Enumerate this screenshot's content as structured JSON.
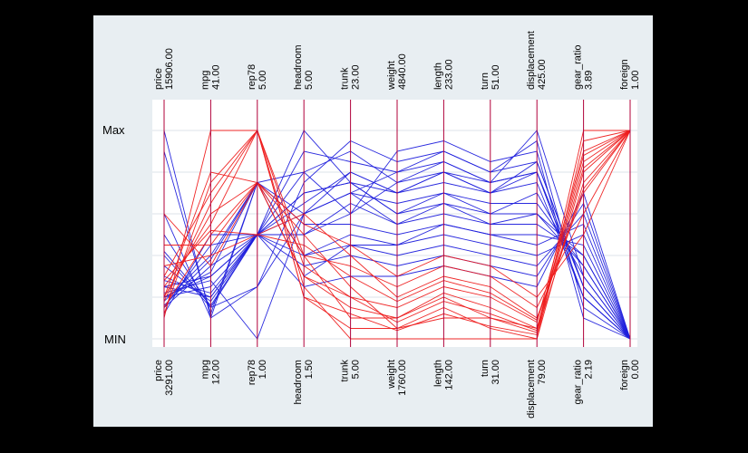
{
  "chart_data": {
    "type": "line",
    "subtype": "parallel-coordinates",
    "side_labels": {
      "max": "Max",
      "min": "MIN"
    },
    "axes": [
      {
        "name": "price",
        "max": "15906.00",
        "min": "3291.00"
      },
      {
        "name": "mpg",
        "max": "41.00",
        "min": "12.00"
      },
      {
        "name": "rep78",
        "max": "5.00",
        "min": "1.00"
      },
      {
        "name": "headroom",
        "max": "5.00",
        "min": "1.50"
      },
      {
        "name": "trunk",
        "max": "23.00",
        "min": "5.00"
      },
      {
        "name": "weight",
        "max": "4840.00",
        "min": "1760.00"
      },
      {
        "name": "length",
        "max": "233.00",
        "min": "142.00"
      },
      {
        "name": "turn",
        "max": "51.00",
        "min": "31.00"
      },
      {
        "name": "displacement",
        "max": "425.00",
        "min": "79.00"
      },
      {
        "name": "gear_ratio",
        "max": "3.89",
        "min": "2.19"
      },
      {
        "name": "foreign",
        "max": "1.00",
        "min": "0.00"
      }
    ],
    "grid": true,
    "colors": {
      "domestic": "#1f1fdc",
      "foreign": "#ee1c1c",
      "axis": "#b0003a",
      "grid": "#dde3e8",
      "plot_bg": "#ffffff"
    },
    "series": [
      {
        "group": "foreign",
        "values": [
          0.25,
          0.55,
          1.0,
          0.4,
          0.1,
          0.1,
          0.2,
          0.1,
          0.05,
          0.85,
          1.0
        ]
      },
      {
        "group": "foreign",
        "values": [
          0.15,
          0.5,
          0.75,
          0.3,
          0.2,
          0.15,
          0.25,
          0.2,
          0.08,
          0.9,
          1.0
        ]
      },
      {
        "group": "foreign",
        "values": [
          0.2,
          0.6,
          0.75,
          0.5,
          0.25,
          0.05,
          0.15,
          0.05,
          0.0,
          0.8,
          1.0
        ]
      },
      {
        "group": "foreign",
        "values": [
          0.3,
          0.7,
          1.0,
          0.2,
          0.05,
          0.05,
          0.1,
          0.1,
          0.03,
          0.75,
          1.0
        ]
      },
      {
        "group": "foreign",
        "values": [
          0.1,
          1.0,
          1.0,
          0.25,
          0.0,
          0.0,
          0.0,
          0.0,
          0.0,
          0.95,
          1.0
        ]
      },
      {
        "group": "foreign",
        "values": [
          0.35,
          0.4,
          0.5,
          0.6,
          0.4,
          0.2,
          0.3,
          0.25,
          0.1,
          0.7,
          1.0
        ]
      },
      {
        "group": "foreign",
        "values": [
          0.45,
          0.45,
          0.75,
          0.4,
          0.35,
          0.25,
          0.35,
          0.3,
          0.15,
          0.6,
          1.0
        ]
      },
      {
        "group": "foreign",
        "values": [
          0.2,
          0.8,
          0.75,
          0.3,
          0.15,
          0.1,
          0.22,
          0.15,
          0.05,
          0.88,
          1.0
        ]
      },
      {
        "group": "foreign",
        "values": [
          0.6,
          0.35,
          0.75,
          0.55,
          0.45,
          0.3,
          0.4,
          0.35,
          0.2,
          0.5,
          1.0
        ]
      },
      {
        "group": "foreign",
        "values": [
          0.18,
          0.65,
          1.0,
          0.35,
          0.2,
          0.08,
          0.18,
          0.12,
          0.04,
          0.82,
          1.0
        ]
      },
      {
        "group": "foreign",
        "values": [
          0.28,
          0.52,
          0.5,
          0.45,
          0.3,
          0.18,
          0.28,
          0.22,
          0.09,
          0.72,
          1.0
        ]
      },
      {
        "group": "foreign",
        "values": [
          0.12,
          0.75,
          1.0,
          0.2,
          0.12,
          0.04,
          0.12,
          0.06,
          0.02,
          1.0,
          1.0
        ]
      },
      {
        "group": "domestic",
        "values": [
          0.2,
          0.3,
          0.5,
          0.6,
          0.7,
          0.55,
          0.65,
          0.6,
          0.6,
          0.4,
          0.0
        ]
      },
      {
        "group": "domestic",
        "values": [
          0.25,
          0.2,
          0.5,
          0.8,
          0.9,
          0.75,
          0.85,
          0.75,
          1.0,
          0.3,
          0.0
        ]
      },
      {
        "group": "domestic",
        "values": [
          0.4,
          0.15,
          0.25,
          0.6,
          0.8,
          0.7,
          0.8,
          0.7,
          0.8,
          0.2,
          0.0
        ]
      },
      {
        "group": "domestic",
        "values": [
          0.15,
          0.35,
          0.5,
          0.4,
          0.5,
          0.45,
          0.55,
          0.5,
          0.45,
          0.55,
          0.0
        ]
      },
      {
        "group": "domestic",
        "values": [
          1.0,
          0.1,
          0.75,
          0.8,
          0.6,
          0.9,
          0.95,
          0.85,
          0.9,
          0.1,
          0.0
        ]
      },
      {
        "group": "domestic",
        "values": [
          0.2,
          0.25,
          0.5,
          0.7,
          0.75,
          0.6,
          0.7,
          0.65,
          0.65,
          0.35,
          0.0
        ]
      },
      {
        "group": "domestic",
        "values": [
          0.3,
          0.2,
          0.5,
          0.5,
          0.65,
          0.55,
          0.6,
          0.55,
          0.55,
          0.4,
          0.0
        ]
      },
      {
        "group": "domestic",
        "values": [
          0.18,
          0.4,
          0.75,
          0.3,
          0.45,
          0.4,
          0.45,
          0.4,
          0.35,
          0.6,
          0.0
        ]
      },
      {
        "group": "domestic",
        "values": [
          0.5,
          0.15,
          0.5,
          0.9,
          0.85,
          0.8,
          0.9,
          0.8,
          0.85,
          0.25,
          0.0
        ]
      },
      {
        "group": "domestic",
        "values": [
          0.22,
          0.28,
          0.0,
          0.6,
          0.7,
          0.65,
          0.7,
          0.6,
          0.7,
          0.3,
          0.0
        ]
      },
      {
        "group": "domestic",
        "values": [
          0.15,
          0.45,
          0.5,
          0.35,
          0.4,
          0.35,
          0.4,
          0.35,
          0.3,
          0.65,
          0.0
        ]
      },
      {
        "group": "domestic",
        "values": [
          0.35,
          0.18,
          0.5,
          0.7,
          0.75,
          0.7,
          0.75,
          0.7,
          0.75,
          0.2,
          0.0
        ]
      },
      {
        "group": "domestic",
        "values": [
          0.6,
          0.1,
          0.25,
          0.75,
          0.95,
          0.85,
          0.9,
          0.8,
          0.95,
          0.15,
          0.0
        ]
      },
      {
        "group": "domestic",
        "values": [
          0.2,
          0.32,
          0.75,
          0.55,
          0.55,
          0.5,
          0.55,
          0.5,
          0.5,
          0.45,
          0.0
        ]
      },
      {
        "group": "domestic",
        "values": [
          0.12,
          0.5,
          0.5,
          0.25,
          0.3,
          0.3,
          0.35,
          0.3,
          0.25,
          0.7,
          0.0
        ]
      },
      {
        "group": "domestic",
        "values": [
          0.28,
          0.22,
          0.5,
          0.65,
          0.8,
          0.7,
          0.8,
          0.75,
          0.8,
          0.25,
          0.0
        ]
      },
      {
        "group": "domestic",
        "values": [
          0.9,
          0.12,
          0.75,
          0.6,
          0.7,
          0.8,
          0.85,
          0.75,
          0.8,
          0.2,
          0.0
        ]
      },
      {
        "group": "domestic",
        "values": [
          0.25,
          0.3,
          0.5,
          1.0,
          0.75,
          0.6,
          0.65,
          0.55,
          0.6,
          0.35,
          0.0
        ]
      },
      {
        "group": "domestic",
        "values": [
          0.16,
          0.38,
          0.75,
          0.4,
          0.45,
          0.45,
          0.5,
          0.45,
          0.4,
          0.5,
          0.0
        ]
      },
      {
        "group": "domestic",
        "values": [
          0.42,
          0.16,
          0.5,
          0.5,
          0.6,
          0.75,
          0.8,
          0.7,
          0.85,
          0.25,
          0.0
        ]
      }
    ]
  }
}
